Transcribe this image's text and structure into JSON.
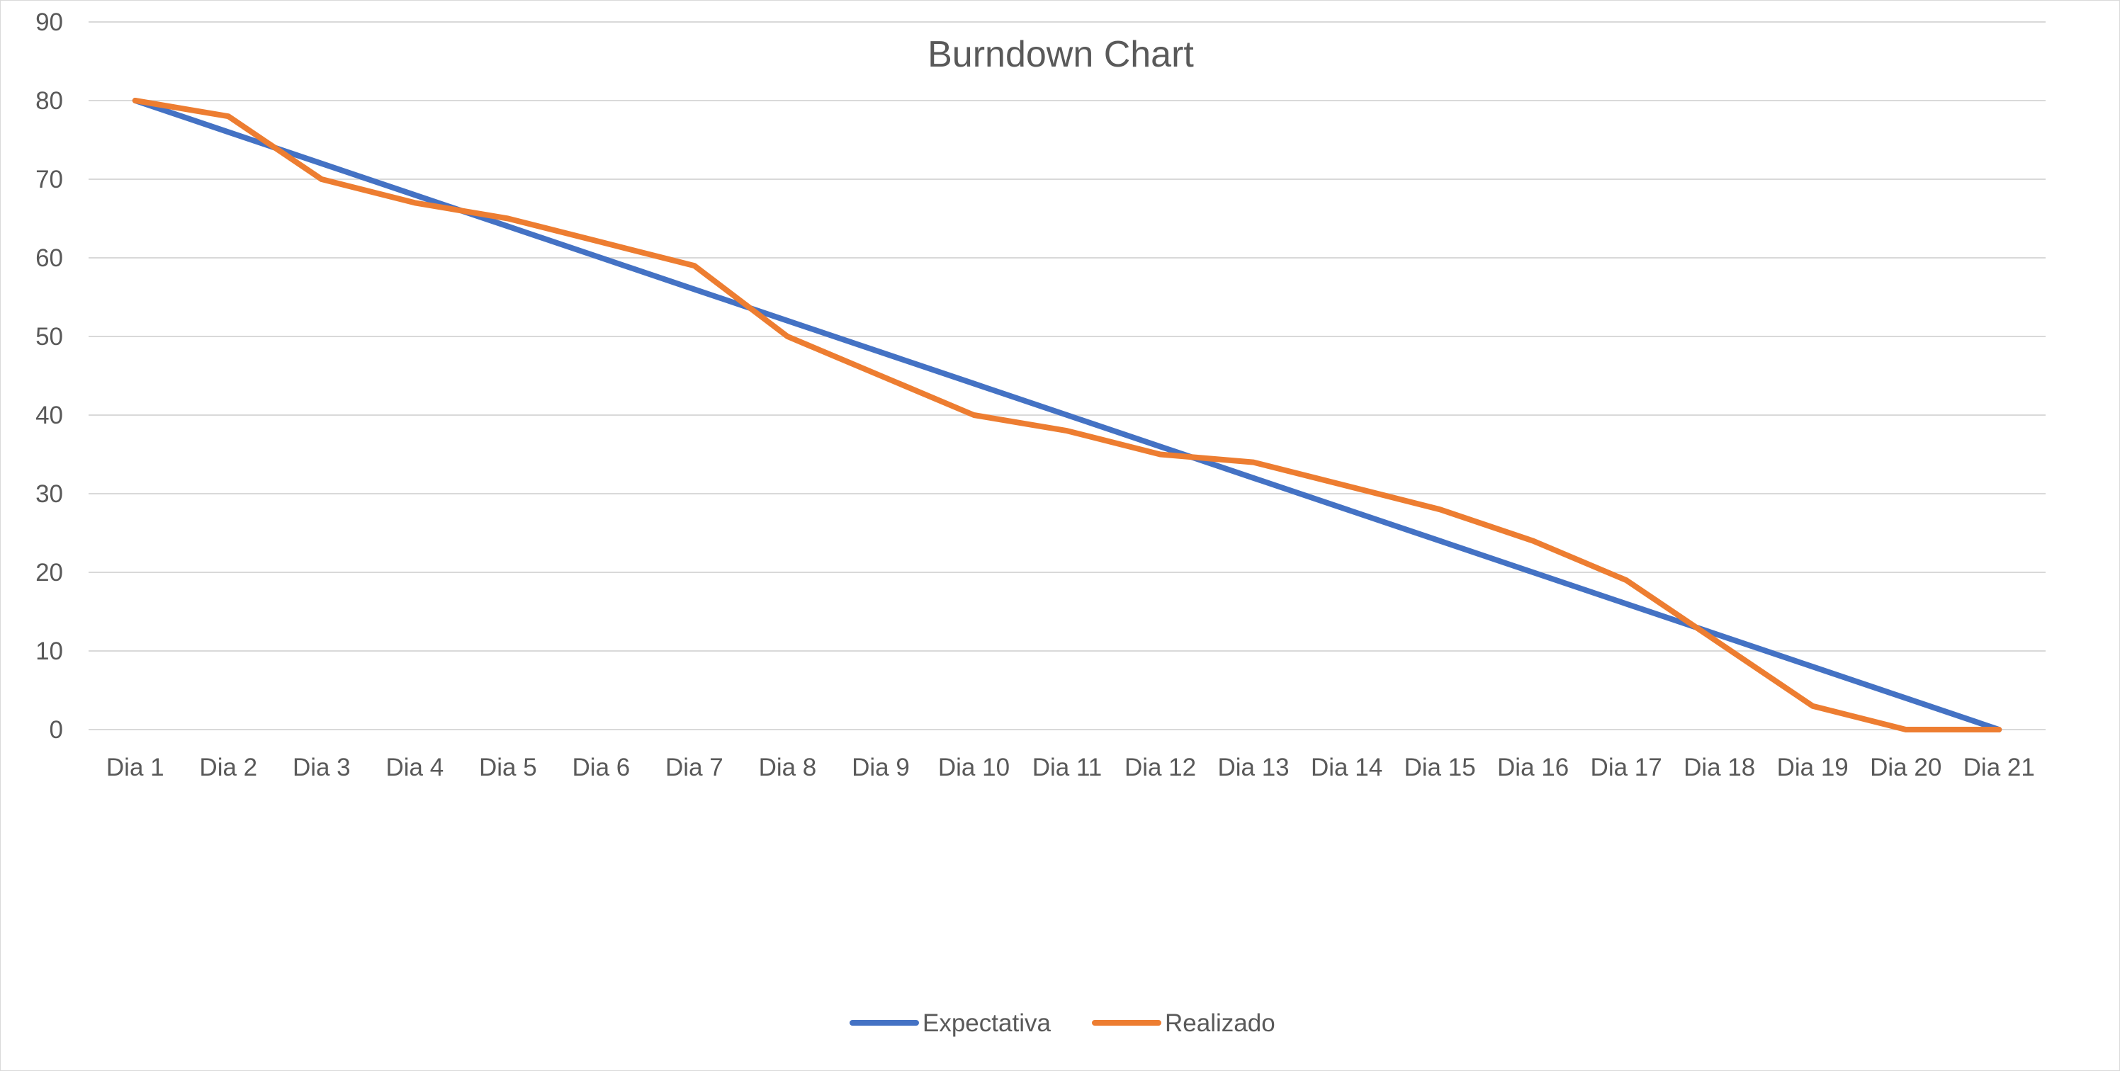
{
  "chart_data": {
    "type": "line",
    "title": "Burndown Chart",
    "xlabel": "",
    "ylabel": "",
    "categories": [
      "Dia 1",
      "Dia 2",
      "Dia 3",
      "Dia 4",
      "Dia 5",
      "Dia 6",
      "Dia 7",
      "Dia 8",
      "Dia 9",
      "Dia 10",
      "Dia 11",
      "Dia 12",
      "Dia 13",
      "Dia 14",
      "Dia 15",
      "Dia 16",
      "Dia 17",
      "Dia 18",
      "Dia 19",
      "Dia 20",
      "Dia 21"
    ],
    "ylim": [
      0,
      90
    ],
    "yticks": [
      0,
      10,
      20,
      30,
      40,
      50,
      60,
      70,
      80,
      90
    ],
    "grid": true,
    "legend_position": "bottom",
    "series": [
      {
        "name": "Expectativa",
        "color": "#4472C4",
        "values": [
          80,
          76,
          72,
          68,
          64,
          60,
          56,
          52,
          48,
          44,
          40,
          36,
          32,
          28,
          24,
          20,
          16,
          12,
          8,
          4,
          0
        ]
      },
      {
        "name": "Realizado",
        "color": "#ED7D31",
        "values": [
          80,
          78,
          70,
          67,
          65,
          62,
          59,
          50,
          45,
          40,
          38,
          35,
          34,
          31,
          28,
          24,
          19,
          11,
          3,
          0,
          0
        ]
      }
    ]
  }
}
